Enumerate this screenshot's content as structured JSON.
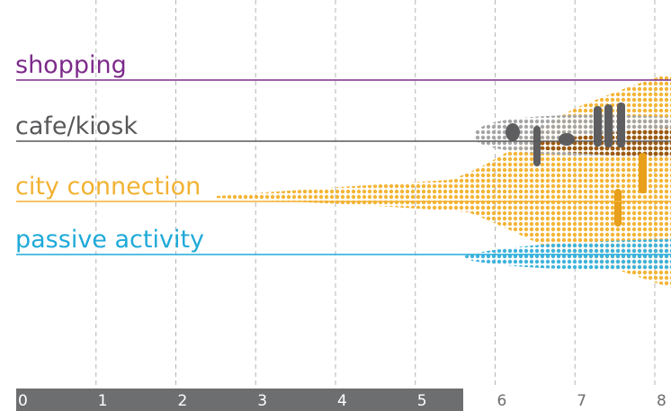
{
  "chart_data": {
    "type": "timeline",
    "xlim": [
      0,
      8.2
    ],
    "xticks": [
      0,
      1,
      2,
      3,
      4,
      5,
      6,
      7,
      8
    ],
    "axis_bar_end": 5.6,
    "grid": true,
    "rows": [
      {
        "name": "shopping",
        "color": "#7d2b8b"
      },
      {
        "name": "cafe/kiosk",
        "color": "#58585a"
      },
      {
        "name": "city connection",
        "color": "#f2b232"
      },
      {
        "name": "passive activity",
        "color": "#1eaad9"
      }
    ]
  }
}
